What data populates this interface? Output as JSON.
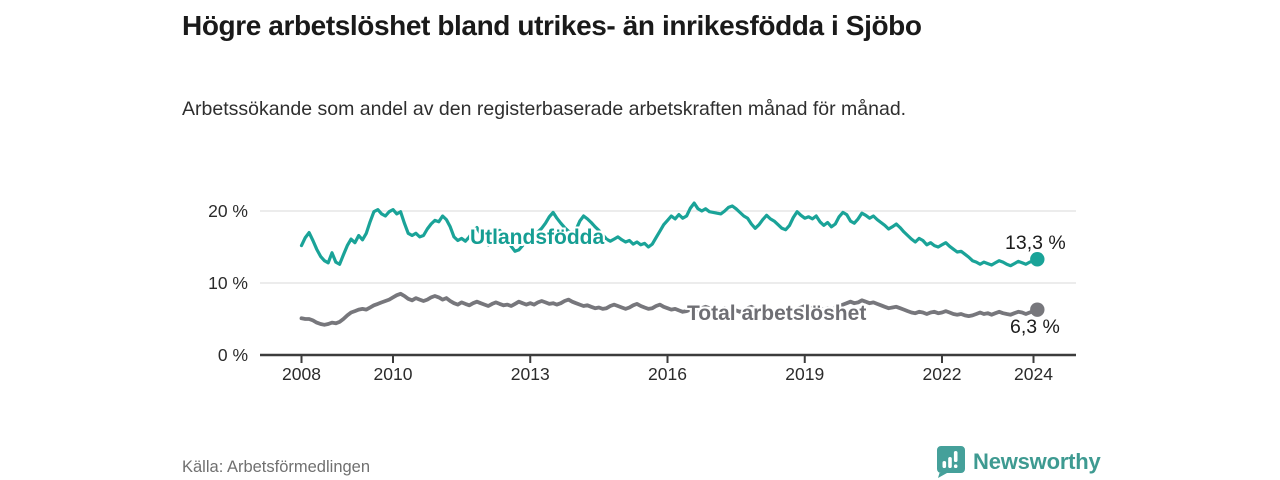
{
  "header": {
    "title": "Högre arbetslöshet bland utrikes- än inrikesfödda i Sjöbo",
    "subtitle": "Arbetssökande som andel av den registerbaserade arbetskraften månad för månad."
  },
  "footer": {
    "source": "Källa: Arbetsförmedlingen",
    "brand": "Newsworthy"
  },
  "colors": {
    "foreign_line": "#1aa398",
    "total_line": "#77777c",
    "grid": "#e1e1e1",
    "axis": "#3c3c3c",
    "brand_teal": "#45a09a",
    "brand_text": "#3e9a91"
  },
  "chart_data": {
    "type": "line",
    "title": "Högre arbetslöshet bland utrikes- än inrikesfödda i Sjöbo",
    "subtitle": "Arbetssökande som andel av den registerbaserade arbetskraften månad för månad.",
    "xlabel": "",
    "ylabel": "",
    "unit": "%",
    "frequency": "monthly",
    "x_start": "2008-01",
    "x_end": "2024-02",
    "xlim": [
      2007.1,
      2024.95
    ],
    "ylim": [
      0,
      23.5
    ],
    "grid": "horizontal",
    "legend_position": "inline-labels",
    "y_ticks": [
      {
        "label": "20 %",
        "value": 20
      },
      {
        "label": "10 %",
        "value": 10
      },
      {
        "label": "0 %",
        "value": 0
      }
    ],
    "x_ticks": [
      {
        "label": "2008",
        "year": 2008
      },
      {
        "label": "2010",
        "year": 2010
      },
      {
        "label": "2013",
        "year": 2013
      },
      {
        "label": "2016",
        "year": 2016
      },
      {
        "label": "2019",
        "year": 2019
      },
      {
        "label": "2022",
        "year": 2022
      },
      {
        "label": "2024",
        "year": 2024
      }
    ],
    "series": [
      {
        "name": "Utlandsfödda",
        "color": "#1aa398",
        "end_label": "13,3 %",
        "end_value": 13.3,
        "values": [
          15.2,
          16.3,
          17.0,
          15.9,
          14.7,
          13.7,
          13.1,
          12.8,
          14.2,
          12.9,
          12.6,
          13.9,
          15.2,
          16.1,
          15.6,
          16.6,
          16.0,
          16.9,
          18.5,
          19.9,
          20.2,
          19.6,
          19.3,
          19.9,
          20.2,
          19.6,
          19.9,
          18.3,
          16.9,
          16.6,
          16.9,
          16.4,
          16.6,
          17.5,
          18.2,
          18.7,
          18.5,
          19.3,
          18.8,
          17.8,
          16.4,
          15.9,
          16.2,
          15.8,
          16.4,
          17.2,
          17.7,
          16.8,
          15.9,
          15.3,
          15.8,
          16.9,
          17.3,
          16.6,
          15.9,
          15.1,
          14.4,
          14.6,
          15.2,
          15.9,
          16.3,
          16.7,
          17.1,
          17.6,
          18.3,
          19.2,
          19.8,
          19.0,
          18.3,
          17.7,
          17.2,
          16.9,
          17.4,
          18.6,
          19.3,
          18.9,
          18.4,
          17.8,
          17.3,
          16.7,
          16.1,
          15.8,
          16.1,
          16.4,
          16.0,
          15.7,
          15.9,
          15.4,
          15.7,
          15.3,
          15.5,
          15.0,
          15.4,
          16.3,
          17.2,
          18.1,
          18.7,
          19.3,
          18.9,
          19.5,
          19.0,
          19.3,
          20.4,
          21.1,
          20.3,
          20.0,
          20.3,
          19.9,
          19.8,
          19.7,
          19.6,
          20.0,
          20.5,
          20.7,
          20.3,
          19.8,
          19.3,
          19.0,
          18.2,
          17.6,
          18.1,
          18.8,
          19.4,
          18.9,
          18.6,
          18.1,
          17.6,
          17.4,
          18.0,
          19.1,
          19.9,
          19.4,
          19.0,
          19.2,
          18.9,
          19.3,
          18.5,
          18.0,
          18.4,
          17.8,
          18.2,
          19.2,
          19.8,
          19.5,
          18.6,
          18.3,
          18.9,
          19.7,
          19.4,
          19.0,
          19.3,
          18.8,
          18.4,
          18.0,
          17.5,
          17.8,
          18.2,
          17.7,
          17.1,
          16.6,
          16.1,
          15.7,
          16.2,
          15.9,
          15.3,
          15.6,
          15.2,
          15.0,
          15.3,
          15.6,
          15.1,
          14.7,
          14.3,
          14.4,
          14.0,
          13.6,
          13.1,
          12.9,
          12.6,
          12.9,
          12.7,
          12.5,
          12.8,
          13.1,
          12.9,
          12.6,
          12.4,
          12.7,
          13.0,
          12.8,
          12.6,
          12.9,
          13.0,
          13.3
        ]
      },
      {
        "name": "Total arbetslöshet",
        "color": "#77777c",
        "end_label": "6,3 %",
        "end_value": 6.3,
        "values": [
          5.1,
          5.0,
          5.0,
          4.8,
          4.5,
          4.3,
          4.2,
          4.3,
          4.5,
          4.4,
          4.6,
          5.0,
          5.5,
          5.9,
          6.1,
          6.3,
          6.4,
          6.3,
          6.6,
          6.9,
          7.1,
          7.3,
          7.5,
          7.7,
          8.0,
          8.3,
          8.5,
          8.2,
          7.8,
          7.6,
          7.9,
          7.7,
          7.5,
          7.7,
          8.0,
          8.2,
          8.0,
          7.7,
          7.9,
          7.5,
          7.2,
          7.0,
          7.3,
          7.1,
          6.9,
          7.2,
          7.4,
          7.2,
          7.0,
          6.8,
          7.1,
          7.3,
          7.1,
          6.9,
          7.0,
          6.8,
          7.1,
          7.4,
          7.2,
          7.0,
          7.2,
          7.0,
          7.3,
          7.5,
          7.3,
          7.1,
          7.2,
          7.0,
          7.2,
          7.5,
          7.7,
          7.4,
          7.2,
          7.0,
          6.8,
          6.9,
          6.7,
          6.5,
          6.6,
          6.4,
          6.5,
          6.8,
          7.0,
          6.8,
          6.6,
          6.4,
          6.6,
          6.9,
          7.1,
          6.8,
          6.6,
          6.4,
          6.5,
          6.8,
          7.0,
          6.7,
          6.5,
          6.3,
          6.4,
          6.2,
          6.0,
          6.1,
          6.3,
          6.1,
          6.2,
          6.5,
          6.7,
          6.5,
          6.3,
          6.1,
          6.3,
          6.5,
          6.3,
          6.1,
          6.2,
          6.0,
          6.2,
          6.5,
          6.7,
          6.4,
          6.2,
          6.0,
          5.9,
          6.0,
          5.8,
          5.7,
          5.9,
          5.7,
          5.9,
          6.2,
          6.4,
          6.6,
          6.8,
          6.6,
          6.5,
          6.6,
          6.4,
          6.3,
          6.5,
          6.3,
          6.5,
          6.8,
          7.0,
          7.2,
          7.4,
          7.2,
          7.3,
          7.6,
          7.4,
          7.2,
          7.3,
          7.1,
          6.9,
          6.7,
          6.5,
          6.6,
          6.7,
          6.5,
          6.3,
          6.1,
          5.9,
          5.8,
          6.0,
          5.9,
          5.7,
          5.9,
          6.0,
          5.8,
          5.9,
          6.1,
          5.9,
          5.7,
          5.6,
          5.7,
          5.5,
          5.4,
          5.5,
          5.7,
          5.9,
          5.7,
          5.8,
          5.6,
          5.8,
          6.0,
          5.8,
          5.7,
          5.6,
          5.8,
          6.0,
          5.9,
          5.7,
          5.9,
          6.1,
          6.3
        ]
      }
    ]
  }
}
